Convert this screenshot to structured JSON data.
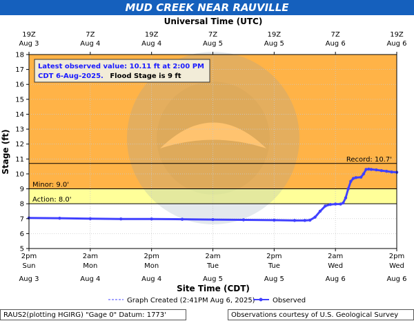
{
  "title": "MUD CREEK NEAR RAUVILLE",
  "top_axis_title": "Universal Time (UTC)",
  "bottom_axis_title": "Site Time (CDT)",
  "y_axis_title": "Stage (ft)",
  "info_box": {
    "line1": "Latest observed value: 10.11 ft at 2:00 PM",
    "line2a": "CDT 6-Aug-2025.",
    "line2b": "Flood Stage is 9 ft"
  },
  "legend": {
    "graph_created": "Graph Created (2:41PM Aug 6, 2025)",
    "observed": "Observed"
  },
  "footer": {
    "left": "RAUS2(plotting HGIRG) \"Gage 0\" Datum: 1773'",
    "right": "Observations courtesy of U.S. Geological Survey"
  },
  "colors": {
    "title_bg": "#1560bd",
    "major_band": "#ffb347",
    "moderate_band": "#fba93a",
    "action_band": "#ffff99",
    "observed": "#4040ff"
  },
  "chart_data": {
    "type": "line",
    "ylim": [
      5,
      18
    ],
    "yticks": [
      5,
      6,
      7,
      8,
      9,
      10,
      11,
      12,
      13,
      14,
      15,
      16,
      17,
      18
    ],
    "x_range_hours": [
      0,
      72
    ],
    "bottom_ticks": [
      {
        "t": 0,
        "time": "2pm",
        "day": "Sun",
        "date": "Aug 3"
      },
      {
        "t": 12,
        "time": "2am",
        "day": "Mon",
        "date": "Aug 4"
      },
      {
        "t": 24,
        "time": "2pm",
        "day": "Mon",
        "date": "Aug 4"
      },
      {
        "t": 36,
        "time": "2am",
        "day": "Tue",
        "date": "Aug 5"
      },
      {
        "t": 48,
        "time": "2pm",
        "day": "Tue",
        "date": "Aug 5"
      },
      {
        "t": 60,
        "time": "2am",
        "day": "Wed",
        "date": "Aug 6"
      },
      {
        "t": 72,
        "time": "2pm",
        "day": "Wed",
        "date": "Aug 6"
      }
    ],
    "top_ticks": [
      {
        "t": 0,
        "time": "19Z",
        "date": "Aug 3"
      },
      {
        "t": 12,
        "time": "7Z",
        "date": "Aug 4"
      },
      {
        "t": 24,
        "time": "19Z",
        "date": "Aug 4"
      },
      {
        "t": 36,
        "time": "7Z",
        "date": "Aug 5"
      },
      {
        "t": 48,
        "time": "19Z",
        "date": "Aug 5"
      },
      {
        "t": 60,
        "time": "7Z",
        "date": "Aug 6"
      },
      {
        "t": 72,
        "time": "19Z",
        "date": "Aug 6"
      }
    ],
    "thresholds": [
      {
        "name": "Record",
        "label": "Record: 10.7'",
        "value": 10.7
      },
      {
        "name": "Minor",
        "label": "Minor: 9.0'",
        "value": 9.0
      },
      {
        "name": "Action",
        "label": "Action: 8.0'",
        "value": 8.0
      }
    ],
    "series": [
      {
        "name": "Observed",
        "x": [
          0,
          6,
          12,
          18,
          24,
          30,
          36,
          42,
          48,
          52,
          54,
          55,
          56,
          57,
          58,
          59,
          60,
          61,
          61.5,
          62,
          62.5,
          63,
          63.5,
          64,
          65,
          65.5,
          66,
          66.5,
          67,
          68,
          69,
          70,
          71,
          72
        ],
        "y": [
          7.05,
          7.03,
          7.0,
          6.98,
          6.98,
          6.96,
          6.94,
          6.92,
          6.9,
          6.88,
          6.88,
          6.9,
          7.1,
          7.5,
          7.85,
          7.95,
          7.98,
          7.98,
          8.05,
          8.4,
          9.0,
          9.5,
          9.7,
          9.75,
          9.78,
          10.0,
          10.3,
          10.32,
          10.3,
          10.27,
          10.22,
          10.18,
          10.13,
          10.11
        ]
      }
    ]
  }
}
